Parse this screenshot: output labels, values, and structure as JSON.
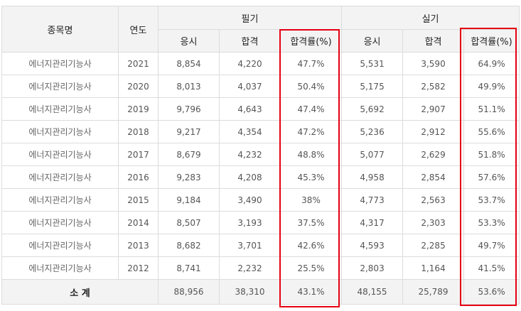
{
  "header": {
    "col_name": "종목명",
    "col_year": "연도",
    "group_written": "필기",
    "group_practical": "실기",
    "sub": {
      "apply": "응시",
      "pass": "합격",
      "rate": "합격률(%)"
    }
  },
  "rows": [
    {
      "name": "에너지관리기능사",
      "year": "2021",
      "w_apply": "8,854",
      "w_pass": "4,220",
      "w_rate": "47.7%",
      "p_apply": "5,531",
      "p_pass": "3,590",
      "p_rate": "64.9%"
    },
    {
      "name": "에너지관리기능사",
      "year": "2020",
      "w_apply": "8,013",
      "w_pass": "4,037",
      "w_rate": "50.4%",
      "p_apply": "5,175",
      "p_pass": "2,582",
      "p_rate": "49.9%"
    },
    {
      "name": "에너지관리기능사",
      "year": "2019",
      "w_apply": "9,796",
      "w_pass": "4,643",
      "w_rate": "47.4%",
      "p_apply": "5,692",
      "p_pass": "2,907",
      "p_rate": "51.1%"
    },
    {
      "name": "에너지관리기능사",
      "year": "2018",
      "w_apply": "9,217",
      "w_pass": "4,354",
      "w_rate": "47.2%",
      "p_apply": "5,236",
      "p_pass": "2,912",
      "p_rate": "55.6%"
    },
    {
      "name": "에너지관리기능사",
      "year": "2017",
      "w_apply": "8,679",
      "w_pass": "4,232",
      "w_rate": "48.8%",
      "p_apply": "5,077",
      "p_pass": "2,629",
      "p_rate": "51.8%"
    },
    {
      "name": "에너지관리기능사",
      "year": "2016",
      "w_apply": "9,283",
      "w_pass": "4,208",
      "w_rate": "45.3%",
      "p_apply": "4,958",
      "p_pass": "2,854",
      "p_rate": "57.6%"
    },
    {
      "name": "에너지관리기능사",
      "year": "2015",
      "w_apply": "9,184",
      "w_pass": "3,490",
      "w_rate": "38%",
      "p_apply": "4,773",
      "p_pass": "2,563",
      "p_rate": "53.7%"
    },
    {
      "name": "에너지관리기능사",
      "year": "2014",
      "w_apply": "8,507",
      "w_pass": "3,193",
      "w_rate": "37.5%",
      "p_apply": "4,317",
      "p_pass": "2,303",
      "p_rate": "53.3%"
    },
    {
      "name": "에너지관리기능사",
      "year": "2013",
      "w_apply": "8,682",
      "w_pass": "3,701",
      "w_rate": "42.6%",
      "p_apply": "4,593",
      "p_pass": "2,285",
      "p_rate": "49.7%"
    },
    {
      "name": "에너지관리기능사",
      "year": "2012",
      "w_apply": "8,741",
      "w_pass": "2,232",
      "w_rate": "25.5%",
      "p_apply": "2,803",
      "p_pass": "1,164",
      "p_rate": "41.5%"
    }
  ],
  "total": {
    "label": "소 계",
    "w_apply": "88,956",
    "w_pass": "38,310",
    "w_rate": "43.1%",
    "p_apply": "48,155",
    "p_pass": "25,789",
    "p_rate": "53.6%"
  },
  "colors": {
    "highlight": "#e60012",
    "header_bg": "#f3f3f3",
    "border": "#dcdcdc"
  }
}
